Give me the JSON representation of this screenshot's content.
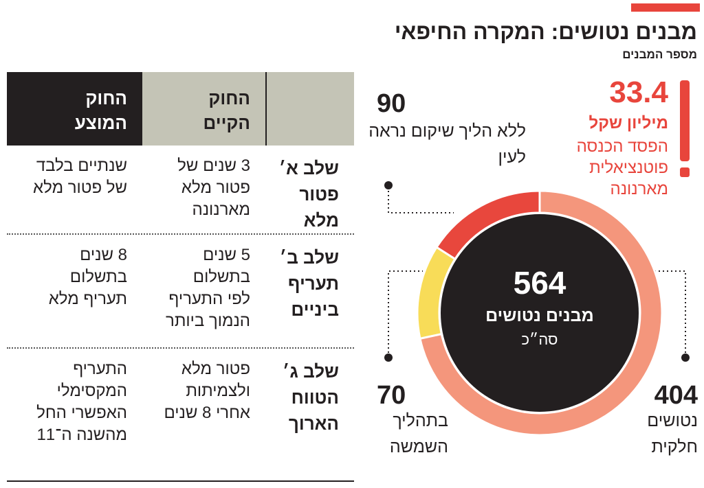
{
  "header": {
    "title": "מבנים נטושים: המקרה החיפאי",
    "subtitle": "מספר המבנים"
  },
  "chart_data": {
    "type": "donut",
    "categories": [
      "ללא הליך שיקום נראה לעין",
      "בתהליך השמשה",
      "נטושים חלקית"
    ],
    "values": [
      90,
      70,
      404
    ],
    "colors": [
      "#e8473d",
      "#f8dc58",
      "#f4967c"
    ],
    "total": 564,
    "total_label": "מבנים נטושים",
    "total_caption": "סה״כ",
    "annotation": {
      "value": 33.4,
      "unit": "מיליון שקל",
      "lines": [
        "הפסד הכנסה",
        "פוטנציאלית",
        "מארנונה"
      ]
    }
  },
  "table": {
    "columns": [
      [
        "החוק",
        "הקיים"
      ],
      [
        "החוק",
        "המוצע"
      ]
    ],
    "rows": [
      [
        [
          "שלב א׳",
          "פטור",
          "מלא"
        ],
        [
          "3 שנים של",
          "פטור מלא",
          "מארנונה"
        ],
        [
          "שנתיים בלבד",
          "של פטור מלא"
        ]
      ],
      [
        [
          "שלב ב׳",
          "תעריף",
          "ביניים"
        ],
        [
          "5 שנים",
          "בתשלום",
          "לפי התעריף",
          "הנמוך ביותר"
        ],
        [
          "8 שנים",
          "בתשלום",
          "תעריף מלא"
        ]
      ],
      [
        [
          "שלב ג׳",
          "הטווח",
          "הארוך"
        ],
        [
          "פטור מלא",
          "ולצמיתות",
          "אחרי 8 שנים"
        ],
        [
          "התעריף",
          "המקסימלי",
          "האפשרי החל",
          "מהשנה ה־11"
        ]
      ]
    ]
  }
}
